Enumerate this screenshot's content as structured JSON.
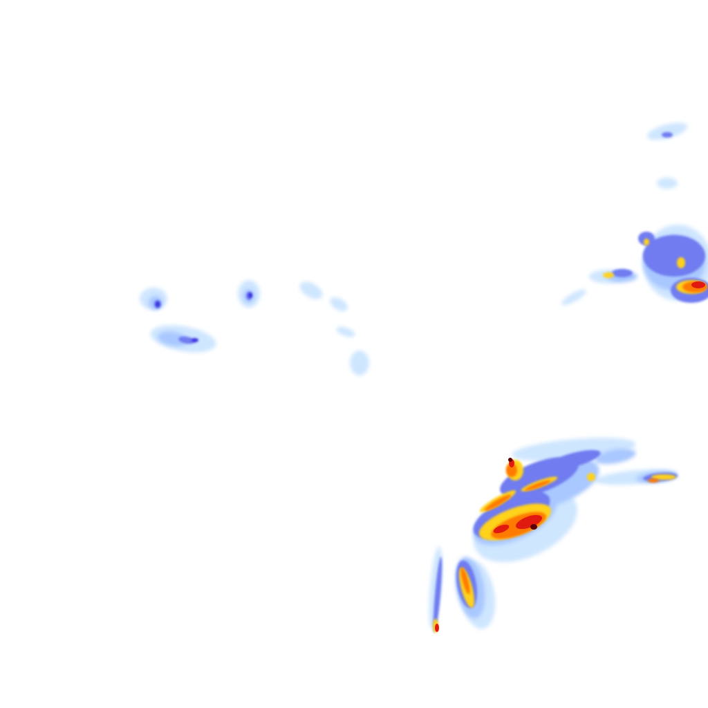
{
  "map": {
    "type": "precipitation-radar-tile",
    "background": "#ffffff",
    "palette": {
      "very_light": "#cfe6ff",
      "light": "#a9c8ff",
      "moderate": "#6f7cf0",
      "strong": "#3b2fe0",
      "heavy": "#ffd21f",
      "very_heavy": "#ff7a00",
      "intense": "#e01a10",
      "extreme": "#5a0000"
    }
  }
}
